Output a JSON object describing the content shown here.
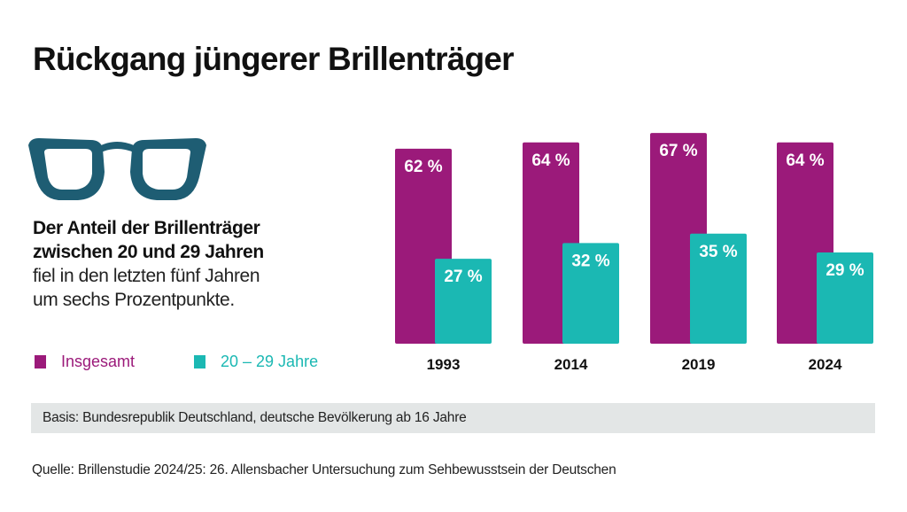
{
  "title": "Rückgang jüngerer Brillenträger",
  "description": {
    "bold_line1": "Der Anteil der Brillenträger",
    "bold_line2": "zwischen 20 und 29 Jahren",
    "line3": "fiel in den letzten fünf Jahren",
    "line4": "um sechs Prozentpunkte."
  },
  "legend": [
    {
      "label": "Insgesamt",
      "color": "#9b1a7a"
    },
    {
      "label": "20 – 29 Jahre",
      "color": "#1bb8b3"
    }
  ],
  "chart_data": {
    "type": "bar",
    "categories": [
      "1993",
      "2014",
      "2019",
      "2024"
    ],
    "series": [
      {
        "name": "Insgesamt",
        "values": [
          62,
          64,
          67,
          64
        ],
        "labels": [
          "62 %",
          "64 %",
          "67 %",
          "64 %"
        ],
        "color": "#9b1a7a"
      },
      {
        "name": "20 – 29 Jahre",
        "values": [
          27,
          32,
          35,
          29
        ],
        "labels": [
          "27 %",
          "32 %",
          "35 %",
          "29 %"
        ],
        "color": "#1bb8b3"
      }
    ],
    "title": "Rückgang jüngerer Brillenträger",
    "ylim": [
      0,
      100
    ]
  },
  "basis": "Basis: Bundesrepublik Deutschland, deutsche Bevölkerung ab 16 Jahre",
  "source": "Quelle:  Brillenstudie 2024/25: 26. Allensbacher Untersuchung zum Sehbewusstsein der Deutschen"
}
